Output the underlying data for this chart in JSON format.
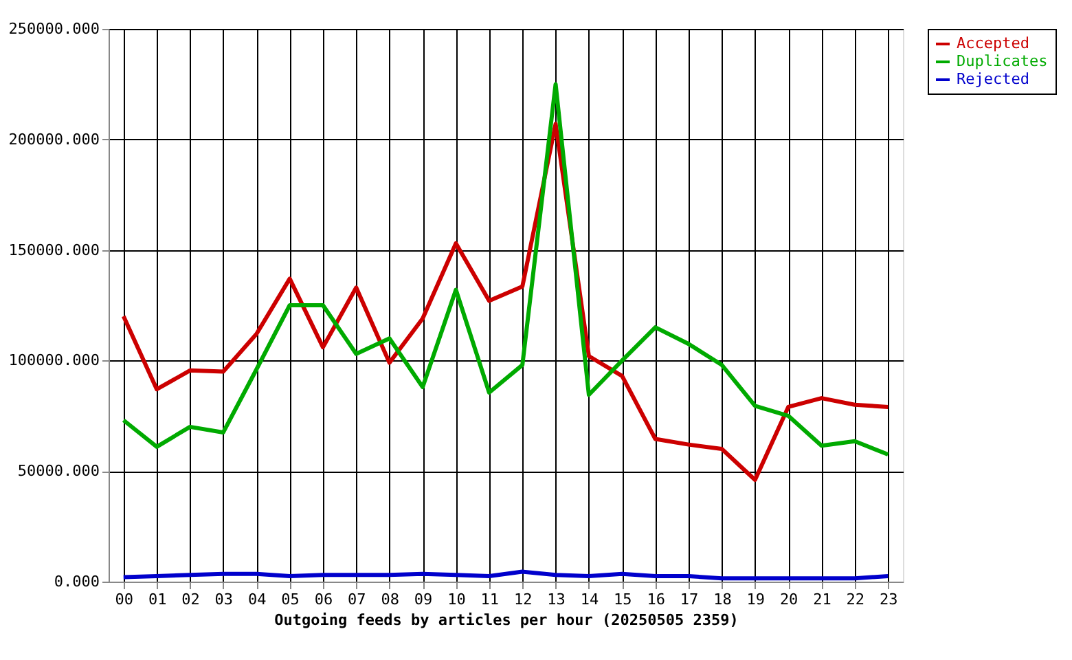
{
  "chart_data": {
    "type": "line",
    "xlabel": "Outgoing feeds by articles per hour (20250505 2359)",
    "categories": [
      "00",
      "01",
      "02",
      "03",
      "04",
      "05",
      "06",
      "07",
      "08",
      "09",
      "10",
      "11",
      "12",
      "13",
      "14",
      "15",
      "16",
      "17",
      "18",
      "19",
      "20",
      "21",
      "22",
      "23"
    ],
    "series": [
      {
        "name": "Accepted",
        "color": "#cc0000",
        "values": [
          120000,
          87000,
          95500,
          95000,
          112000,
          137000,
          106000,
          133000,
          99000,
          119000,
          153000,
          127000,
          133500,
          207000,
          102000,
          93000,
          64500,
          62000,
          60000,
          46000,
          79000,
          83000,
          80000,
          79000
        ]
      },
      {
        "name": "Duplicates",
        "color": "#00aa00",
        "values": [
          73000,
          61000,
          70000,
          67500,
          96000,
          125000,
          125000,
          103000,
          110000,
          88000,
          132000,
          85500,
          98000,
          225000,
          84500,
          100000,
          115000,
          107500,
          98000,
          79500,
          75000,
          61500,
          63500,
          57500
        ]
      },
      {
        "name": "Rejected",
        "color": "#0000cc",
        "values": [
          2000,
          2500,
          3000,
          3500,
          3500,
          2500,
          3000,
          3000,
          3000,
          3500,
          3000,
          2500,
          4500,
          3000,
          2500,
          3500,
          2500,
          2500,
          1500,
          1500,
          1500,
          1500,
          1500,
          2500
        ]
      }
    ],
    "ylim": [
      0,
      250000
    ],
    "yticks": [
      {
        "value": 0,
        "label": "0.000"
      },
      {
        "value": 50000,
        "label": "50000.000"
      },
      {
        "value": 100000,
        "label": "100000.000"
      },
      {
        "value": 150000,
        "label": "150000.000"
      },
      {
        "value": 200000,
        "label": "200000.000"
      },
      {
        "value": 250000,
        "label": "250000.000"
      }
    ],
    "grid": true,
    "legend": "top right",
    "marker": "none",
    "line_style": "solid"
  }
}
